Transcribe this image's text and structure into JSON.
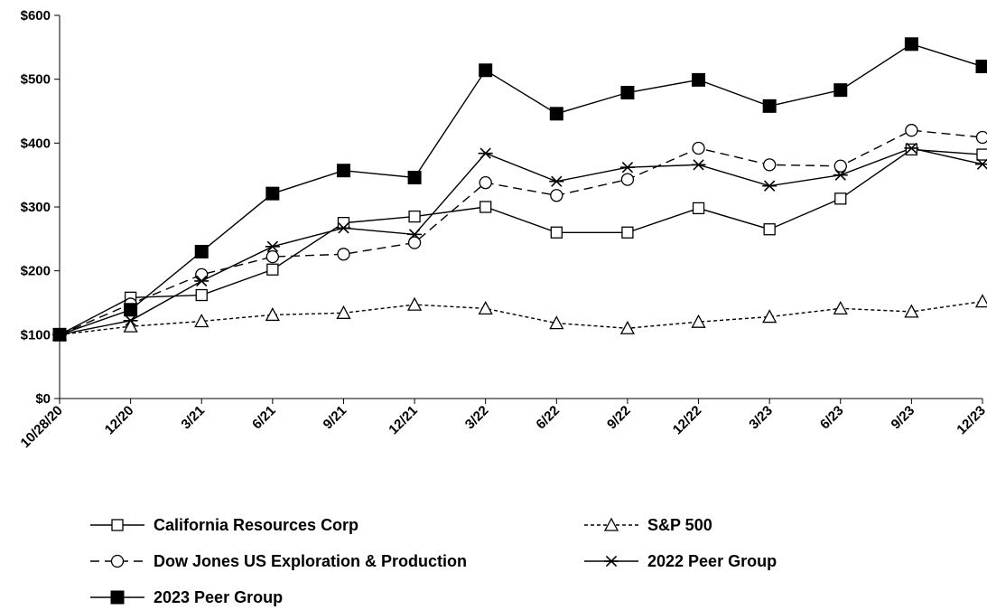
{
  "chart_data": {
    "type": "line",
    "title": "",
    "xlabel": "",
    "ylabel": "",
    "ylim": [
      0,
      600
    ],
    "y_ticks": [
      0,
      100,
      200,
      300,
      400,
      500,
      600
    ],
    "y_tick_labels": [
      "$0",
      "$100",
      "$200",
      "$300",
      "$400",
      "$500",
      "$600"
    ],
    "categories": [
      "10/28/20",
      "12/20",
      "3/21",
      "6/21",
      "9/21",
      "12/21",
      "3/22",
      "6/22",
      "9/22",
      "12/22",
      "3/23",
      "6/23",
      "9/23",
      "12/23"
    ],
    "grid": false,
    "legend_position": "bottom",
    "series": [
      {
        "name": "California Resources Corp",
        "marker": "open-square",
        "line_style": "solid",
        "color": "#000000",
        "values": [
          100,
          158,
          162,
          202,
          275,
          285,
          300,
          260,
          260,
          298,
          265,
          313,
          390,
          382
        ]
      },
      {
        "name": "S&P 500",
        "marker": "open-triangle",
        "line_style": "dotted",
        "color": "#000000",
        "values": [
          100,
          113,
          121,
          131,
          134,
          147,
          141,
          118,
          110,
          120,
          128,
          141,
          136,
          152
        ]
      },
      {
        "name": "Dow Jones US Exploration & Production",
        "marker": "open-circle",
        "line_style": "dashed",
        "color": "#000000",
        "values": [
          100,
          148,
          194,
          222,
          226,
          244,
          338,
          318,
          343,
          392,
          366,
          364,
          420,
          409
        ]
      },
      {
        "name": "2022 Peer Group",
        "marker": "asterisk",
        "line_style": "solid",
        "color": "#000000",
        "values": [
          100,
          122,
          184,
          238,
          267,
          257,
          384,
          340,
          362,
          366,
          333,
          350,
          392,
          367
        ]
      },
      {
        "name": "2023 Peer Group",
        "marker": "filled-square",
        "line_style": "solid",
        "color": "#000000",
        "values": [
          100,
          139,
          230,
          321,
          357,
          346,
          514,
          446,
          479,
          499,
          458,
          483,
          555,
          520
        ]
      }
    ]
  }
}
